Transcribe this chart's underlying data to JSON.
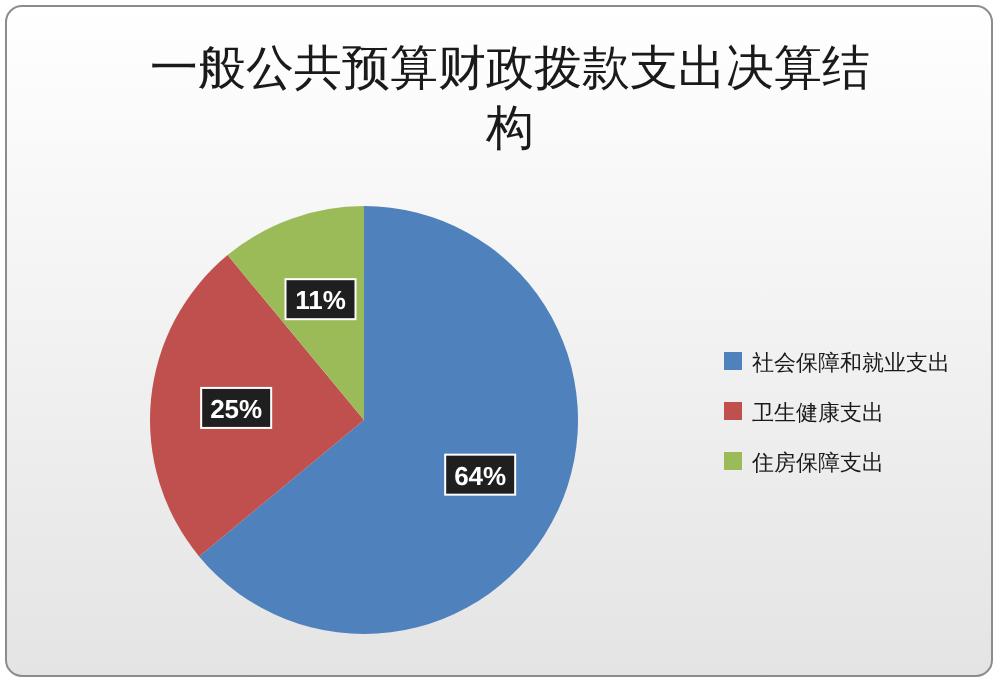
{
  "chart_data": {
    "type": "pie",
    "title": "一般公共预算财政拨款支出决算结构",
    "categories": [
      "社会保障和就业支出",
      "卫生健康支出",
      "住房保障支出"
    ],
    "values": [
      64,
      25,
      11
    ],
    "colors": [
      "#4f81bd",
      "#c0504d",
      "#9bbb59"
    ],
    "value_labels": [
      "64%",
      "25%",
      "11%"
    ],
    "legend": "right"
  }
}
